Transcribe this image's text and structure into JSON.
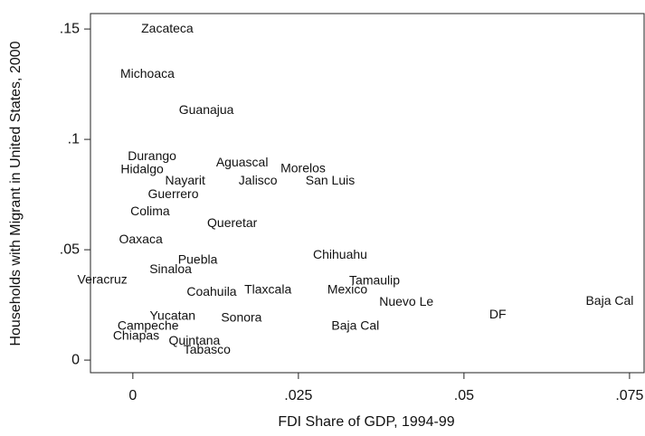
{
  "chart_data": {
    "type": "scatter",
    "x_label": "FDI Share of GDP, 1994-99",
    "y_label": "Households with Migrant in United States, 2000",
    "xlim": [
      -0.0064,
      0.0772
    ],
    "ylim": [
      -0.0057,
      0.157
    ],
    "xticks": [
      0,
      {
        "value": 0.025,
        "label": ".025"
      },
      {
        "value": 0.05,
        "label": ".05"
      },
      {
        "value": 0.075,
        "label": ".075"
      }
    ],
    "yticks": [
      0,
      {
        "value": 0.05,
        "label": ".05"
      },
      {
        "value": 0.1,
        "label": ".1"
      },
      {
        "value": 0.15,
        "label": ".15"
      }
    ],
    "color": "#111111",
    "points": [
      {
        "label": "Zacateca",
        "x": 0.0052,
        "y": 0.15
      },
      {
        "label": "Michoaca",
        "x": 0.0022,
        "y": 0.1295
      },
      {
        "label": "Guanajua",
        "x": 0.0111,
        "y": 0.1131
      },
      {
        "label": "Durango",
        "x": 0.0029,
        "y": 0.0922
      },
      {
        "label": "Hidalgo",
        "x": 0.0014,
        "y": 0.0861
      },
      {
        "label": "Aguascal",
        "x": 0.0165,
        "y": 0.0893
      },
      {
        "label": "Morelos",
        "x": 0.0257,
        "y": 0.0865
      },
      {
        "label": "Nayarit",
        "x": 0.0079,
        "y": 0.0811
      },
      {
        "label": "Jalisco",
        "x": 0.0189,
        "y": 0.0811
      },
      {
        "label": "San Luis",
        "x": 0.0298,
        "y": 0.0811
      },
      {
        "label": "Guerrero",
        "x": 0.0061,
        "y": 0.075
      },
      {
        "label": "Colima",
        "x": 0.0026,
        "y": 0.0672
      },
      {
        "label": "Queretar",
        "x": 0.015,
        "y": 0.0619
      },
      {
        "label": "Oaxaca",
        "x": 0.0012,
        "y": 0.0545
      },
      {
        "label": "Chihuahu",
        "x": 0.0313,
        "y": 0.0475
      },
      {
        "label": "Puebla",
        "x": 0.0098,
        "y": 0.0451
      },
      {
        "label": "Sinaloa",
        "x": 0.0057,
        "y": 0.041
      },
      {
        "label": "Veracruz",
        "x": -0.0046,
        "y": 0.0361
      },
      {
        "label": "Tamaulip",
        "x": 0.0365,
        "y": 0.0357
      },
      {
        "label": "Mexico",
        "x": 0.0324,
        "y": 0.0316
      },
      {
        "label": "Coahuila",
        "x": 0.0119,
        "y": 0.0307
      },
      {
        "label": "Tlaxcala",
        "x": 0.0204,
        "y": 0.0316
      },
      {
        "label": "Nuevo Le",
        "x": 0.0413,
        "y": 0.0262
      },
      {
        "label": "Baja Cal",
        "x": 0.072,
        "y": 0.0266
      },
      {
        "label": "DF",
        "x": 0.0551,
        "y": 0.0205
      },
      {
        "label": "Yucatan",
        "x": 0.006,
        "y": 0.0197
      },
      {
        "label": "Sonora",
        "x": 0.0164,
        "y": 0.0189
      },
      {
        "label": "Baja Cal",
        "x": 0.0336,
        "y": 0.0152
      },
      {
        "label": "Campeche",
        "x": 0.0023,
        "y": 0.0152
      },
      {
        "label": "Chiapas",
        "x": 0.0005,
        "y": 0.0107
      },
      {
        "label": "Quintana",
        "x": 0.0093,
        "y": 0.0086
      },
      {
        "label": "Tabasco",
        "x": 0.0112,
        "y": 0.0045
      }
    ]
  }
}
